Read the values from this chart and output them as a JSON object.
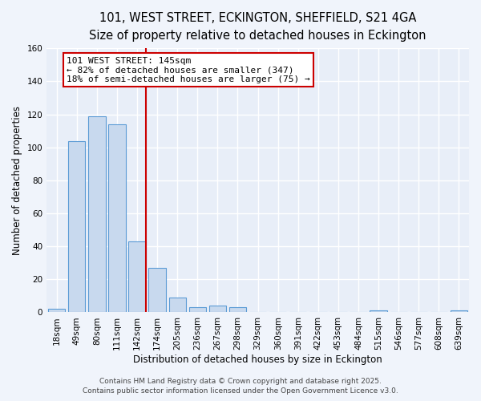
{
  "title": "101, WEST STREET, ECKINGTON, SHEFFIELD, S21 4GA",
  "subtitle": "Size of property relative to detached houses in Eckington",
  "xlabel": "Distribution of detached houses by size in Eckington",
  "ylabel": "Number of detached properties",
  "bar_labels": [
    "18sqm",
    "49sqm",
    "80sqm",
    "111sqm",
    "142sqm",
    "174sqm",
    "205sqm",
    "236sqm",
    "267sqm",
    "298sqm",
    "329sqm",
    "360sqm",
    "391sqm",
    "422sqm",
    "453sqm",
    "484sqm",
    "515sqm",
    "546sqm",
    "577sqm",
    "608sqm",
    "639sqm"
  ],
  "bar_values": [
    2,
    104,
    119,
    114,
    43,
    27,
    9,
    3,
    4,
    3,
    0,
    0,
    0,
    0,
    0,
    0,
    1,
    0,
    0,
    0,
    1
  ],
  "bar_color": "#c8d9ee",
  "bar_edgecolor": "#5b9bd5",
  "bar_linewidth": 0.8,
  "vline_x_index": 4,
  "vline_color": "#cc0000",
  "vline_linewidth": 1.5,
  "annotation_text": "101 WEST STREET: 145sqm\n← 82% of detached houses are smaller (347)\n18% of semi-detached houses are larger (75) →",
  "annotation_box_edgecolor": "#cc0000",
  "annotation_box_facecolor": "#ffffff",
  "footer_line1": "Contains HM Land Registry data © Crown copyright and database right 2025.",
  "footer_line2": "Contains public sector information licensed under the Open Government Licence v3.0.",
  "ylim": [
    0,
    160
  ],
  "fig_background_color": "#f0f4fb",
  "ax_background_color": "#e8eef8",
  "grid_color": "#ffffff",
  "title_fontsize": 10.5,
  "subtitle_fontsize": 9.5,
  "axis_label_fontsize": 8.5,
  "tick_fontsize": 7.5,
  "annotation_fontsize": 8,
  "footer_fontsize": 6.5
}
